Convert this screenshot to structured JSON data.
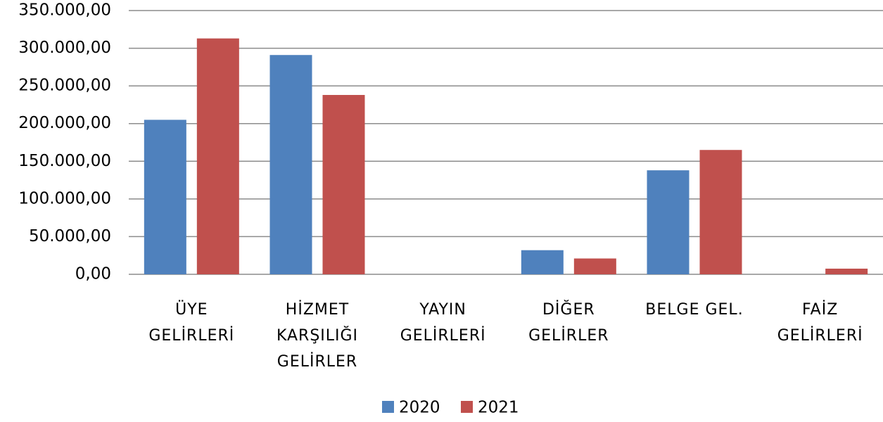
{
  "chart_data": {
    "type": "bar",
    "categories": [
      "ÜYE\nGELİRLERİ",
      "HİZMET\nKARŞILIĞI\nGELİRLER",
      "YAYIN GELİRLERİ",
      "DİĞER\nGELİRLER",
      "BELGE GEL.",
      "FAİZ\nGELİRLERİ"
    ],
    "series": [
      {
        "name": "2020",
        "color": "#4f81bd",
        "values": [
          205000,
          291000,
          0,
          32000,
          138000,
          0
        ]
      },
      {
        "name": "2021",
        "color": "#c0504d",
        "values": [
          313000,
          238000,
          0,
          21000,
          165000,
          7500
        ]
      }
    ],
    "ylim": [
      0,
      350000
    ],
    "yticks": [
      {
        "value": 0,
        "label": "0,00"
      },
      {
        "value": 50000,
        "label": "50.000,00"
      },
      {
        "value": 100000,
        "label": "100.000,00"
      },
      {
        "value": 150000,
        "label": "150.000,00"
      },
      {
        "value": 200000,
        "label": "200.000,00"
      },
      {
        "value": 250000,
        "label": "250.000,00"
      },
      {
        "value": 300000,
        "label": "300.000,00"
      },
      {
        "value": 350000,
        "label": "350.000,00"
      }
    ],
    "grid": true,
    "legend": "bottom"
  }
}
